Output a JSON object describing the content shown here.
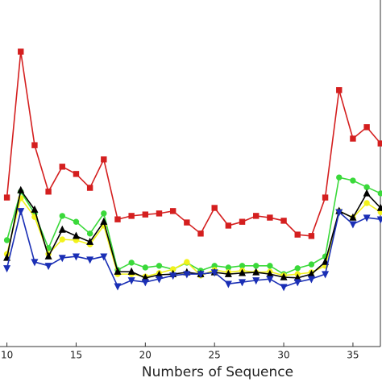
{
  "chart_data": {
    "type": "line",
    "x_label": "Numbers of Sequence",
    "x": [
      10,
      11,
      12,
      13,
      14,
      15,
      16,
      17,
      18,
      19,
      20,
      21,
      22,
      23,
      24,
      25,
      26,
      27,
      28,
      29,
      30,
      31,
      32,
      33,
      34,
      35,
      36,
      37
    ],
    "xlim": [
      9.5,
      37.1
    ],
    "xticks": [
      10,
      15,
      20,
      25,
      30,
      35
    ],
    "ylim": [
      0,
      100
    ],
    "series": [
      {
        "color": "#d41f1f",
        "marker": "square",
        "values": [
          43.0,
          85.1,
          58.1,
          44.7,
          51.9,
          49.8,
          45.8,
          54.0,
          36.7,
          37.7,
          38.1,
          38.4,
          39.1,
          35.8,
          32.6,
          40.0,
          34.9,
          36.0,
          37.7,
          37.2,
          36.3,
          32.3,
          31.9,
          43.0,
          74.0,
          60.0,
          63.3,
          58.6
        ]
      },
      {
        "color": "#3ad93a",
        "marker": "circle",
        "values": [
          30.7,
          44.7,
          38.4,
          28.4,
          37.7,
          36.0,
          32.6,
          38.4,
          22.1,
          24.2,
          22.8,
          23.3,
          22.3,
          24.2,
          21.9,
          23.3,
          22.8,
          23.3,
          23.3,
          23.3,
          20.9,
          22.6,
          23.7,
          26.0,
          48.8,
          47.9,
          46.0,
          44.2
        ]
      },
      {
        "color": "#f2f21a",
        "marker": "circle",
        "values": [
          26.7,
          42.8,
          37.4,
          26.7,
          30.9,
          30.7,
          29.5,
          34.9,
          20.9,
          20.9,
          20.2,
          21.2,
          22.3,
          24.4,
          20.5,
          22.1,
          21.4,
          21.9,
          21.4,
          21.6,
          20.5,
          20.9,
          21.4,
          23.3,
          39.1,
          37.2,
          41.4,
          38.8
        ]
      },
      {
        "color": "#000000",
        "marker": "triangle-up",
        "values": [
          25.6,
          45.1,
          39.5,
          26.0,
          33.7,
          31.9,
          30.2,
          36.0,
          21.6,
          21.6,
          19.8,
          20.7,
          20.9,
          21.4,
          20.9,
          21.4,
          20.9,
          21.2,
          21.4,
          20.9,
          20.0,
          19.8,
          20.9,
          24.4,
          39.1,
          37.2,
          44.2,
          40.0
        ]
      },
      {
        "color": "#1a2fb5",
        "marker": "triangle-down",
        "values": [
          22.6,
          39.1,
          24.4,
          23.3,
          25.6,
          26.0,
          25.1,
          26.0,
          17.4,
          19.1,
          18.6,
          19.5,
          20.5,
          20.9,
          20.9,
          21.4,
          18.1,
          18.6,
          19.1,
          19.5,
          17.2,
          18.6,
          19.5,
          20.9,
          38.8,
          35.3,
          37.2,
          36.7
        ]
      }
    ]
  }
}
